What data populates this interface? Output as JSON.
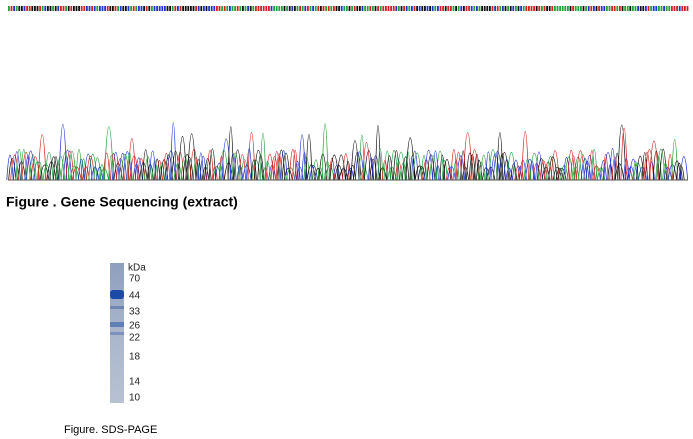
{
  "figures": [
    {
      "caption": "Figure . Gene Sequencing (extract)"
    },
    {
      "caption": "Figure. SDS-PAGE",
      "unit": "kDa",
      "markers": [
        70,
        44,
        33,
        26,
        22,
        18,
        14,
        10
      ]
    }
  ]
}
